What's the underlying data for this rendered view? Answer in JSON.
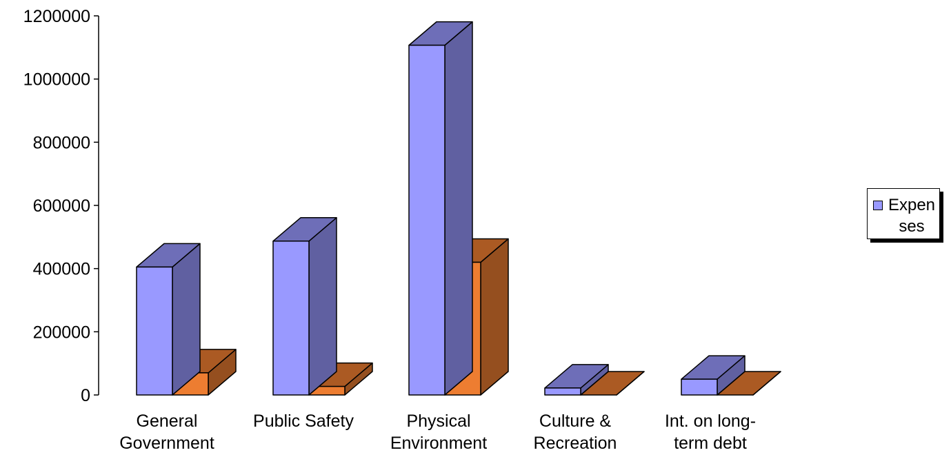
{
  "chart_data": {
    "type": "bar",
    "style": "3d-clustered",
    "categories": [
      [
        "General",
        "Government"
      ],
      [
        "Public Safety"
      ],
      [
        "Physical",
        "Environment"
      ],
      [
        "Culture &",
        "Recreation"
      ],
      [
        "Int. on long-",
        "term debt"
      ]
    ],
    "series": [
      {
        "name": "Expenses",
        "color": "#9999ff",
        "values": [
          405000,
          487000,
          1107000,
          22000,
          50000
        ]
      },
      {
        "name": "",
        "color": "#ed7d31",
        "values": [
          70000,
          27000,
          420000,
          0,
          0
        ]
      }
    ],
    "yticks": [
      "0",
      "200000",
      "400000",
      "600000",
      "800000",
      "1000000",
      "1200000"
    ],
    "ylim": [
      0,
      1200000
    ],
    "legend_position": "right",
    "grid": false
  },
  "legend": {
    "label": "Expenses"
  }
}
